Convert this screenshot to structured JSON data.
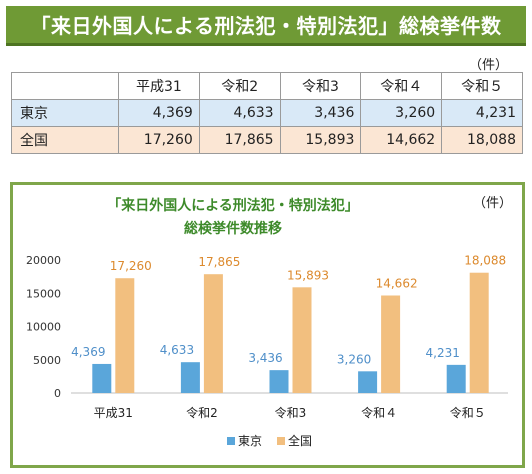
{
  "banner": {
    "title": "「来日外国人による刑法犯・特別法犯」総検挙件数"
  },
  "table": {
    "unit": "（件）",
    "headers": [
      "",
      "平成31",
      "令和2",
      "令和3",
      "令和４",
      "令和５"
    ],
    "rows": [
      {
        "label": "東京",
        "values": [
          "4,369",
          "4,633",
          "3,436",
          "3,260",
          "4,231"
        ]
      },
      {
        "label": "全国",
        "values": [
          "17,260",
          "17,865",
          "15,893",
          "14,662",
          "18,088"
        ]
      }
    ]
  },
  "chart_data": {
    "type": "bar",
    "title_line1": "「来日外国人による刑法犯・特別法犯」",
    "title_line2": "総検挙件数推移",
    "unit": "（件）",
    "categories": [
      "平成31",
      "令和2",
      "令和3",
      "令和４",
      "令和５"
    ],
    "series": [
      {
        "name": "東京",
        "values": [
          4369,
          4633,
          3436,
          3260,
          4231
        ],
        "labels": [
          "4,369",
          "4,633",
          "3,436",
          "3,260",
          "4,231"
        ],
        "color": "#5aa6da"
      },
      {
        "name": "全国",
        "values": [
          17260,
          17865,
          15893,
          14662,
          18088
        ],
        "labels": [
          "17,260",
          "17,865",
          "15,893",
          "14,662",
          "18,088"
        ],
        "color": "#f2bf7f"
      }
    ],
    "yticks": [
      "0",
      "5000",
      "10000",
      "15000",
      "20000"
    ],
    "ylim": [
      0,
      20000
    ],
    "grid": false,
    "legend": "bottom"
  },
  "colors": {
    "banner": "#6f9a35",
    "frame": "#7fa64a",
    "tokyo_row": "#d9e9f7",
    "zenkoku_row": "#fbe6d4"
  }
}
